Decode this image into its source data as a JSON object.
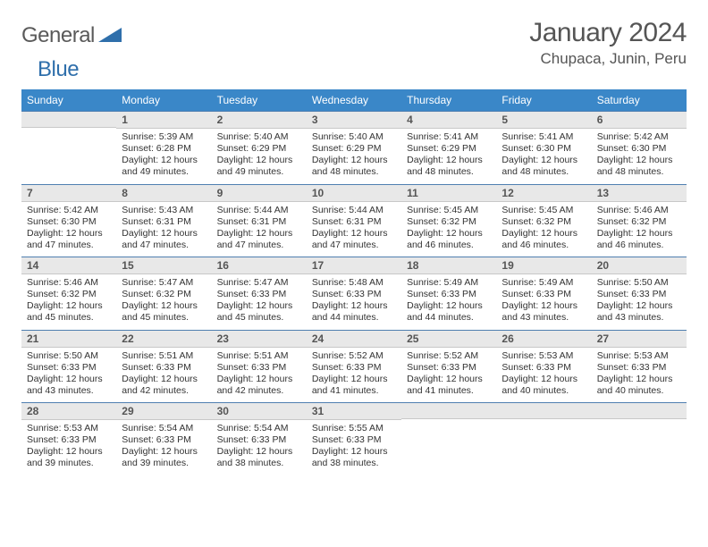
{
  "brand": {
    "part1": "General",
    "part2": "Blue"
  },
  "title": "January 2024",
  "location": "Chupaca, Junin, Peru",
  "colors": {
    "headerBlue": "#3a87c8",
    "ruleBlue": "#4f7fb0",
    "dayNumBg": "#e8e8e8",
    "text": "#333333",
    "titleGray": "#555555",
    "logoBlue": "#2f6fab"
  },
  "weekdays": [
    "Sunday",
    "Monday",
    "Tuesday",
    "Wednesday",
    "Thursday",
    "Friday",
    "Saturday"
  ],
  "weeks": [
    [
      null,
      {
        "n": "1",
        "sr": "5:39 AM",
        "ss": "6:28 PM",
        "dl": "12 hours and 49 minutes."
      },
      {
        "n": "2",
        "sr": "5:40 AM",
        "ss": "6:29 PM",
        "dl": "12 hours and 49 minutes."
      },
      {
        "n": "3",
        "sr": "5:40 AM",
        "ss": "6:29 PM",
        "dl": "12 hours and 48 minutes."
      },
      {
        "n": "4",
        "sr": "5:41 AM",
        "ss": "6:29 PM",
        "dl": "12 hours and 48 minutes."
      },
      {
        "n": "5",
        "sr": "5:41 AM",
        "ss": "6:30 PM",
        "dl": "12 hours and 48 minutes."
      },
      {
        "n": "6",
        "sr": "5:42 AM",
        "ss": "6:30 PM",
        "dl": "12 hours and 48 minutes."
      }
    ],
    [
      {
        "n": "7",
        "sr": "5:42 AM",
        "ss": "6:30 PM",
        "dl": "12 hours and 47 minutes."
      },
      {
        "n": "8",
        "sr": "5:43 AM",
        "ss": "6:31 PM",
        "dl": "12 hours and 47 minutes."
      },
      {
        "n": "9",
        "sr": "5:44 AM",
        "ss": "6:31 PM",
        "dl": "12 hours and 47 minutes."
      },
      {
        "n": "10",
        "sr": "5:44 AM",
        "ss": "6:31 PM",
        "dl": "12 hours and 47 minutes."
      },
      {
        "n": "11",
        "sr": "5:45 AM",
        "ss": "6:32 PM",
        "dl": "12 hours and 46 minutes."
      },
      {
        "n": "12",
        "sr": "5:45 AM",
        "ss": "6:32 PM",
        "dl": "12 hours and 46 minutes."
      },
      {
        "n": "13",
        "sr": "5:46 AM",
        "ss": "6:32 PM",
        "dl": "12 hours and 46 minutes."
      }
    ],
    [
      {
        "n": "14",
        "sr": "5:46 AM",
        "ss": "6:32 PM",
        "dl": "12 hours and 45 minutes."
      },
      {
        "n": "15",
        "sr": "5:47 AM",
        "ss": "6:32 PM",
        "dl": "12 hours and 45 minutes."
      },
      {
        "n": "16",
        "sr": "5:47 AM",
        "ss": "6:33 PM",
        "dl": "12 hours and 45 minutes."
      },
      {
        "n": "17",
        "sr": "5:48 AM",
        "ss": "6:33 PM",
        "dl": "12 hours and 44 minutes."
      },
      {
        "n": "18",
        "sr": "5:49 AM",
        "ss": "6:33 PM",
        "dl": "12 hours and 44 minutes."
      },
      {
        "n": "19",
        "sr": "5:49 AM",
        "ss": "6:33 PM",
        "dl": "12 hours and 43 minutes."
      },
      {
        "n": "20",
        "sr": "5:50 AM",
        "ss": "6:33 PM",
        "dl": "12 hours and 43 minutes."
      }
    ],
    [
      {
        "n": "21",
        "sr": "5:50 AM",
        "ss": "6:33 PM",
        "dl": "12 hours and 43 minutes."
      },
      {
        "n": "22",
        "sr": "5:51 AM",
        "ss": "6:33 PM",
        "dl": "12 hours and 42 minutes."
      },
      {
        "n": "23",
        "sr": "5:51 AM",
        "ss": "6:33 PM",
        "dl": "12 hours and 42 minutes."
      },
      {
        "n": "24",
        "sr": "5:52 AM",
        "ss": "6:33 PM",
        "dl": "12 hours and 41 minutes."
      },
      {
        "n": "25",
        "sr": "5:52 AM",
        "ss": "6:33 PM",
        "dl": "12 hours and 41 minutes."
      },
      {
        "n": "26",
        "sr": "5:53 AM",
        "ss": "6:33 PM",
        "dl": "12 hours and 40 minutes."
      },
      {
        "n": "27",
        "sr": "5:53 AM",
        "ss": "6:33 PM",
        "dl": "12 hours and 40 minutes."
      }
    ],
    [
      {
        "n": "28",
        "sr": "5:53 AM",
        "ss": "6:33 PM",
        "dl": "12 hours and 39 minutes."
      },
      {
        "n": "29",
        "sr": "5:54 AM",
        "ss": "6:33 PM",
        "dl": "12 hours and 39 minutes."
      },
      {
        "n": "30",
        "sr": "5:54 AM",
        "ss": "6:33 PM",
        "dl": "12 hours and 38 minutes."
      },
      {
        "n": "31",
        "sr": "5:55 AM",
        "ss": "6:33 PM",
        "dl": "12 hours and 38 minutes."
      },
      null,
      null,
      null
    ]
  ],
  "labels": {
    "sunrise": "Sunrise:",
    "sunset": "Sunset:",
    "daylight": "Daylight:"
  }
}
